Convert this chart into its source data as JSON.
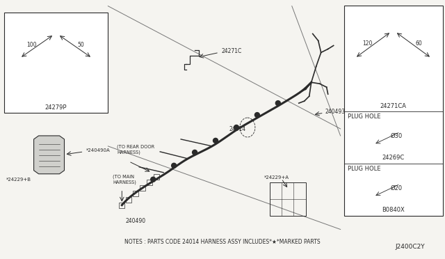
{
  "bg_color": "#f5f4f0",
  "line_color": "#2a2a2a",
  "box_bg": "#ffffff",
  "note_text": "NOTES : PARTS CODE 24014 HARNESS ASSY INCLUDES*★*MARKED PARTS",
  "diagram_code": "J2400C2Y",
  "left_box_label": "24279P",
  "left_box_dim1": "100",
  "left_box_dim2": "50",
  "right_box_label": "24271CA",
  "right_box_dim1": "120",
  "right_box_dim2": "60",
  "plug1_label": "PLUG HOLE",
  "plug1_part": "24269C",
  "plug1_dim": "Ø30",
  "plug2_label": "PLUG HOLE",
  "plug2_part": "B0840X",
  "plug2_dim": "Ø20"
}
